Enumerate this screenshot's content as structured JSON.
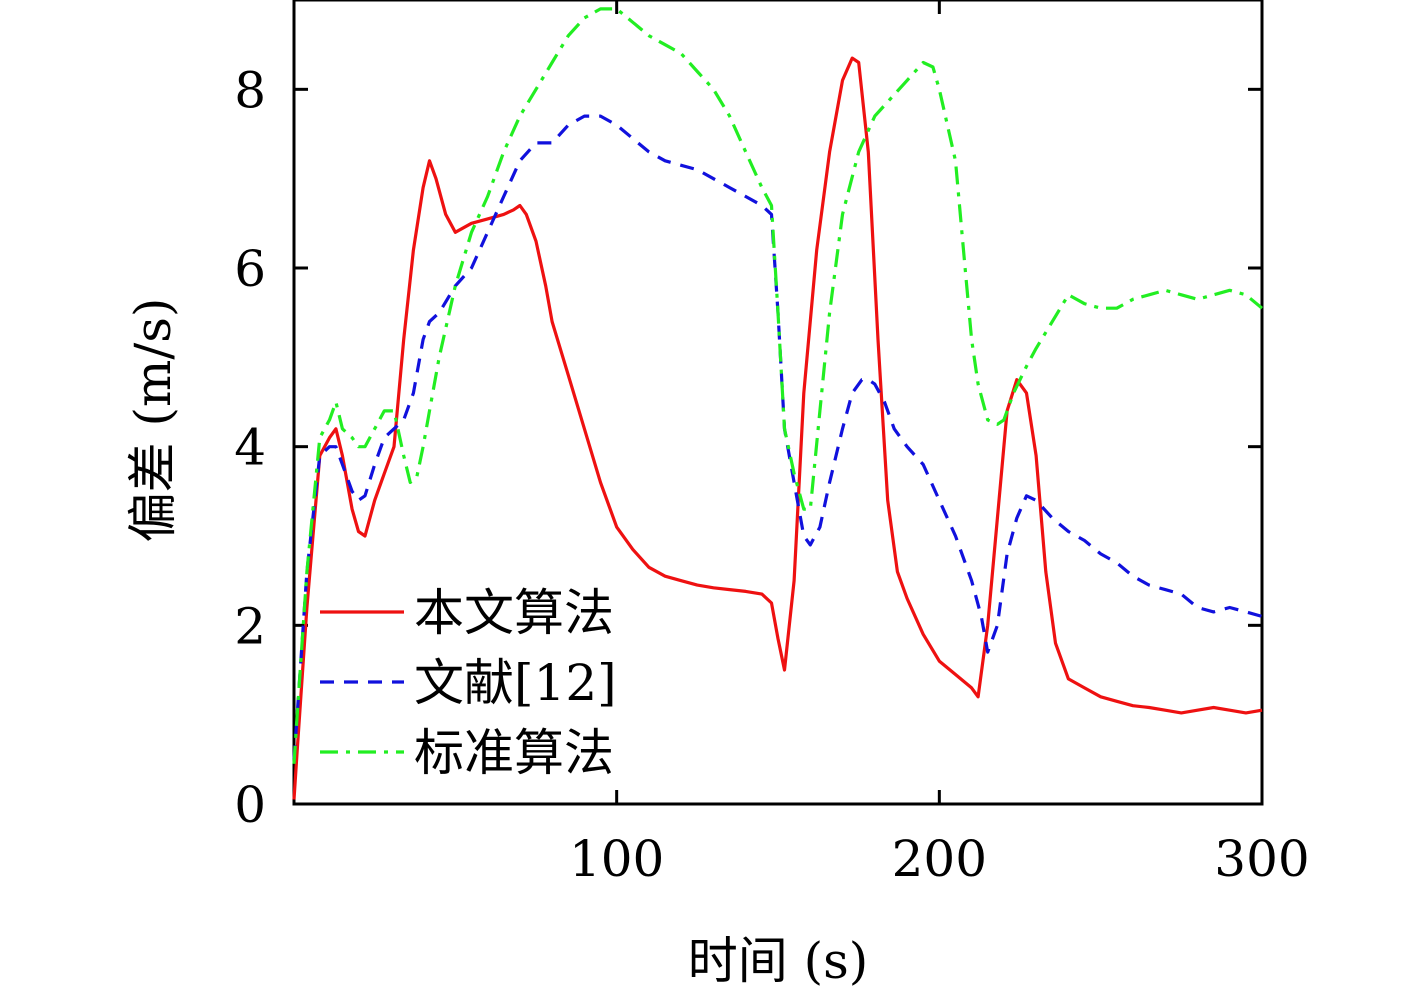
{
  "chart_data": {
    "type": "line",
    "xlabel": "时间 (s)",
    "ylabel": "偏差 (m/s)",
    "xlim": [
      0,
      300
    ],
    "ylim": [
      0,
      9
    ],
    "xticks": [
      100,
      200,
      300
    ],
    "yticks": [
      0,
      2,
      4,
      6,
      8
    ],
    "grid": false,
    "legend_position": "bottom-left",
    "series": [
      {
        "name": "本文算法",
        "color": "#ee1111",
        "dash": "solid",
        "x": [
          0,
          1,
          4,
          8,
          11,
          13,
          15,
          18,
          20,
          22,
          25,
          28,
          31,
          34,
          37,
          40,
          42,
          44,
          47,
          50,
          55,
          60,
          65,
          68,
          70,
          72,
          75,
          78,
          80,
          85,
          90,
          95,
          100,
          105,
          110,
          115,
          120,
          125,
          130,
          135,
          140,
          145,
          148,
          150,
          152,
          155,
          158,
          162,
          166,
          170,
          173,
          175,
          178,
          181,
          184,
          187,
          190,
          195,
          200,
          205,
          210,
          212,
          215,
          218,
          221,
          224,
          227,
          230,
          233,
          236,
          240,
          245,
          250,
          255,
          260,
          265,
          270,
          275,
          280,
          285,
          290,
          295,
          300
        ],
        "y": [
          0.05,
          0.6,
          2.2,
          3.9,
          4.1,
          4.2,
          3.9,
          3.3,
          3.05,
          3.0,
          3.4,
          3.7,
          4.0,
          5.2,
          6.2,
          6.9,
          7.2,
          7.0,
          6.6,
          6.4,
          6.5,
          6.55,
          6.6,
          6.65,
          6.7,
          6.6,
          6.3,
          5.8,
          5.4,
          4.8,
          4.2,
          3.6,
          3.1,
          2.85,
          2.65,
          2.55,
          2.5,
          2.45,
          2.42,
          2.4,
          2.38,
          2.35,
          2.25,
          1.85,
          1.5,
          2.5,
          4.6,
          6.2,
          7.3,
          8.1,
          8.35,
          8.3,
          7.3,
          5.2,
          3.4,
          2.6,
          2.3,
          1.9,
          1.6,
          1.45,
          1.3,
          1.2,
          2.0,
          3.2,
          4.4,
          4.75,
          4.6,
          3.9,
          2.6,
          1.8,
          1.4,
          1.3,
          1.2,
          1.15,
          1.1,
          1.08,
          1.05,
          1.02,
          1.05,
          1.08,
          1.05,
          1.02,
          1.05
        ]
      },
      {
        "name": "文献[12]",
        "color": "#1111dd",
        "dash": "dashed",
        "x": [
          0,
          1,
          4,
          8,
          11,
          13,
          15,
          18,
          20,
          22,
          25,
          28,
          31,
          34,
          37,
          40,
          42,
          45,
          50,
          55,
          60,
          65,
          70,
          75,
          80,
          85,
          90,
          95,
          100,
          105,
          110,
          115,
          120,
          125,
          130,
          135,
          140,
          145,
          148,
          150,
          152,
          155,
          158,
          160,
          163,
          166,
          170,
          173,
          176,
          178,
          180,
          183,
          186,
          190,
          195,
          200,
          205,
          210,
          213,
          215,
          218,
          221,
          224,
          227,
          230,
          235,
          240,
          245,
          250,
          255,
          260,
          265,
          270,
          275,
          280,
          285,
          290,
          295,
          300
        ],
        "y": [
          0.5,
          1.0,
          2.6,
          3.9,
          4.0,
          4.0,
          3.8,
          3.5,
          3.4,
          3.45,
          3.8,
          4.1,
          4.2,
          4.3,
          4.6,
          5.2,
          5.4,
          5.5,
          5.8,
          6.0,
          6.4,
          6.8,
          7.2,
          7.4,
          7.4,
          7.6,
          7.7,
          7.7,
          7.6,
          7.45,
          7.3,
          7.2,
          7.15,
          7.1,
          7.0,
          6.9,
          6.8,
          6.7,
          6.6,
          5.5,
          4.2,
          3.6,
          3.0,
          2.9,
          3.1,
          3.6,
          4.2,
          4.6,
          4.75,
          4.75,
          4.7,
          4.5,
          4.2,
          4.0,
          3.8,
          3.4,
          3.0,
          2.5,
          2.1,
          1.7,
          2.0,
          2.8,
          3.2,
          3.45,
          3.4,
          3.2,
          3.05,
          2.95,
          2.8,
          2.7,
          2.55,
          2.45,
          2.4,
          2.35,
          2.2,
          2.15,
          2.2,
          2.15,
          2.1
        ]
      },
      {
        "name": "标准算法",
        "color": "#22ee22",
        "dash": "dashdot",
        "x": [
          0,
          1,
          4,
          8,
          11,
          13,
          15,
          18,
          20,
          22,
          25,
          28,
          31,
          34,
          36,
          38,
          40,
          42,
          45,
          50,
          55,
          60,
          65,
          70,
          75,
          80,
          85,
          90,
          95,
          100,
          105,
          110,
          115,
          120,
          125,
          130,
          135,
          140,
          145,
          148,
          150,
          152,
          155,
          158,
          160,
          163,
          166,
          170,
          175,
          180,
          185,
          190,
          195,
          198,
          200,
          205,
          208,
          210,
          212,
          215,
          218,
          220,
          223,
          227,
          230,
          235,
          240,
          245,
          250,
          255,
          260,
          265,
          270,
          275,
          280,
          285,
          290,
          295,
          300
        ],
        "y": [
          0.45,
          1.0,
          2.6,
          4.1,
          4.3,
          4.5,
          4.2,
          4.1,
          4.0,
          4.0,
          4.2,
          4.4,
          4.4,
          3.9,
          3.6,
          3.65,
          4.0,
          4.4,
          5.0,
          5.8,
          6.4,
          6.8,
          7.3,
          7.7,
          8.0,
          8.3,
          8.6,
          8.8,
          8.9,
          8.9,
          8.75,
          8.6,
          8.5,
          8.4,
          8.2,
          8.0,
          7.7,
          7.3,
          6.9,
          6.7,
          5.5,
          4.2,
          3.7,
          3.3,
          3.3,
          4.4,
          5.5,
          6.6,
          7.3,
          7.7,
          7.9,
          8.1,
          8.3,
          8.25,
          8.0,
          7.2,
          6.0,
          5.2,
          4.7,
          4.3,
          4.25,
          4.3,
          4.6,
          4.9,
          5.1,
          5.4,
          5.7,
          5.6,
          5.55,
          5.55,
          5.65,
          5.7,
          5.75,
          5.7,
          5.65,
          5.7,
          5.75,
          5.7,
          5.55
        ]
      }
    ]
  }
}
